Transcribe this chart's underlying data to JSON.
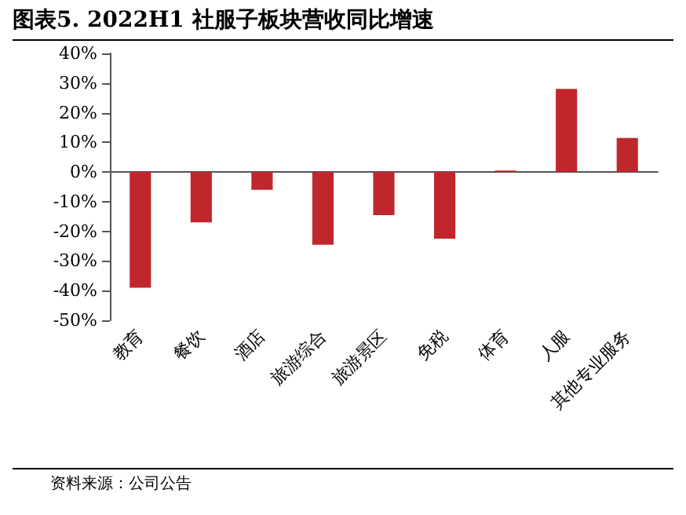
{
  "chart_data": {
    "type": "bar",
    "title": "图表5.   2022H1 社服子板块营收同比增速",
    "categories": [
      "教育",
      "餐饮",
      "酒店",
      "旅游综合",
      "旅游景区",
      "免税",
      "体育",
      "人服",
      "其他专业服务"
    ],
    "values": [
      -39,
      -17,
      -6,
      -24.5,
      -14.5,
      -22.5,
      0.5,
      28,
      11.5
    ],
    "color": "#c0272d",
    "ylim": [
      -50,
      40
    ],
    "yticks": [
      {
        "value": -50,
        "label": "-50%"
      },
      {
        "value": -40,
        "label": "-40%"
      },
      {
        "value": -30,
        "label": "-30%"
      },
      {
        "value": -20,
        "label": "-20%"
      },
      {
        "value": -10,
        "label": "-10%"
      },
      {
        "value": 0,
        "label": "0%"
      },
      {
        "value": 10,
        "label": "10%"
      },
      {
        "value": 20,
        "label": "20%"
      },
      {
        "value": 30,
        "label": "30%"
      },
      {
        "value": 40,
        "label": "40%"
      }
    ],
    "annotations": [
      "资料来源：公司公告"
    ]
  }
}
